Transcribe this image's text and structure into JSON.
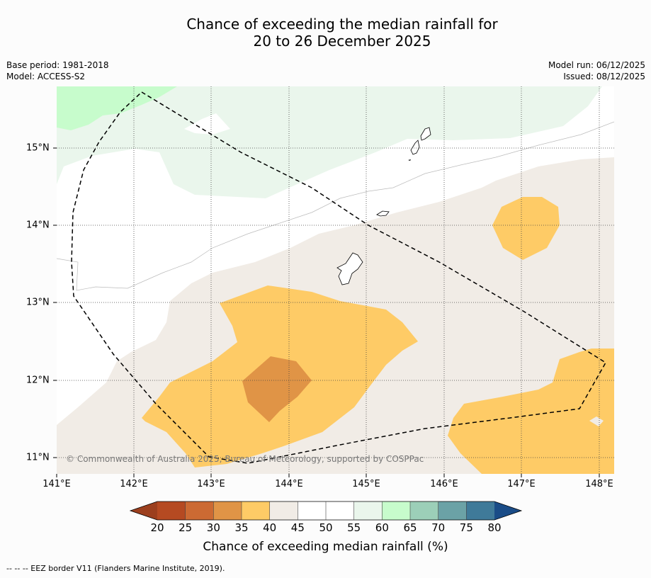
{
  "title": {
    "line1": "Chance of exceeding the median rainfall for",
    "line2": "20 to 26 December 2025"
  },
  "meta": {
    "base_period": "Base period: 1981-2018",
    "model": "Model: ACCESS-S2",
    "model_run": "Model run: 06/12/2025",
    "issued": "Issued: 08/12/2025"
  },
  "map": {
    "longitude_ticks": [
      "141°E",
      "142°E",
      "143°E",
      "144°E",
      "145°E",
      "146°E",
      "147°E",
      "148°E"
    ],
    "latitude_ticks": [
      "15°N",
      "14°N",
      "13°N",
      "12°N",
      "11°N"
    ],
    "copyright": "© Commonwealth of Australia 2025, Bureau of Meteorology, supported by COSPPac"
  },
  "colorbar": {
    "label": "Chance of exceeding median rainfall (%)",
    "ticks": [
      "20",
      "25",
      "30",
      "35",
      "40",
      "45",
      "50",
      "55",
      "60",
      "65",
      "70",
      "75",
      "80"
    ],
    "colors": [
      "#9c3f1e",
      "#b54a22",
      "#cc6a33",
      "#e09446",
      "#fecb66",
      "#f1ece6",
      "#ffffff",
      "#ffffff",
      "#eaf6ec",
      "#c7fccc",
      "#9ccfb8",
      "#6ba2a6",
      "#3f7a99",
      "#1a4c87"
    ]
  },
  "legend": {
    "eez": "--  --  -- EEZ border V11 (Flanders Marine Institute, 2019)."
  }
}
